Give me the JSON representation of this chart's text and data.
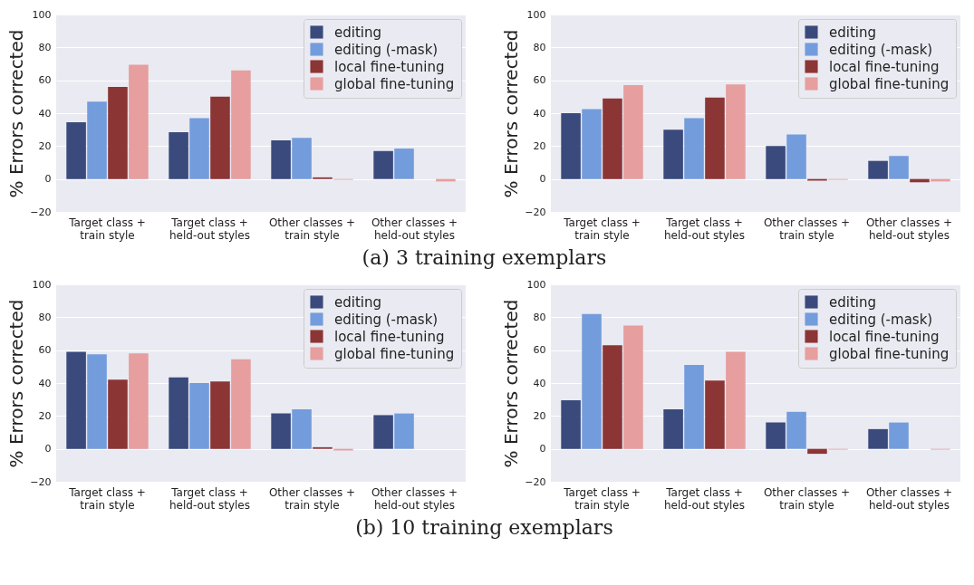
{
  "chart_data": [
    {
      "type": "bar",
      "ylabel": "% Errors corrected",
      "categories": [
        "Target class + train style",
        "Target class + held-out styles",
        "Other classes + train style",
        "Other classes + held-out styles"
      ],
      "ylim": [
        -20,
        100
      ],
      "yticks": [
        -20,
        0,
        20,
        40,
        60,
        80,
        100
      ],
      "grid": "y",
      "legend": "top right",
      "annotations": [
        "(a) 3 training exemplars"
      ],
      "series": [
        {
          "name": "editing",
          "color": "#3a4a7c",
          "values": [
            34.5,
            28.5,
            23.5,
            17
          ]
        },
        {
          "name": "editing (-mask)",
          "color": "#739cdc",
          "values": [
            47,
            37,
            25,
            18.5
          ]
        },
        {
          "name": "local fine-tuning",
          "color": "#8c3535",
          "values": [
            56,
            50,
            1,
            0
          ]
        },
        {
          "name": "global fine-tuning",
          "color": "#e69e9e",
          "values": [
            69.5,
            66,
            -0.5,
            -1.5
          ]
        }
      ]
    },
    {
      "type": "bar",
      "ylabel": "% Errors corrected",
      "categories": [
        "Target class + train style",
        "Target class + held-out styles",
        "Other classes + train style",
        "Other classes + held-out styles"
      ],
      "ylim": [
        -20,
        100
      ],
      "yticks": [
        -20,
        0,
        20,
        40,
        60,
        80,
        100
      ],
      "grid": "y",
      "legend": "top right",
      "series": [
        {
          "name": "editing",
          "color": "#3a4a7c",
          "values": [
            40,
            30,
            20,
            11
          ]
        },
        {
          "name": "editing (-mask)",
          "color": "#739cdc",
          "values": [
            42.5,
            37,
            27,
            14
          ]
        },
        {
          "name": "local fine-tuning",
          "color": "#8c3535",
          "values": [
            49,
            49.5,
            -1,
            -2
          ]
        },
        {
          "name": "global fine-tuning",
          "color": "#e69e9e",
          "values": [
            57,
            57.5,
            -0.5,
            -1.5
          ]
        }
      ]
    },
    {
      "type": "bar",
      "ylabel": "% Errors corrected",
      "categories": [
        "Target class + train style",
        "Target class + held-out styles",
        "Other classes + train style",
        "Other classes + held-out styles"
      ],
      "ylim": [
        -20,
        100
      ],
      "yticks": [
        -20,
        0,
        20,
        40,
        60,
        80,
        100
      ],
      "grid": "y",
      "legend": "top right",
      "annotations": [
        "(b) 10 training exemplars"
      ],
      "series": [
        {
          "name": "editing",
          "color": "#3a4a7c",
          "values": [
            59,
            43.5,
            21.5,
            20.5
          ]
        },
        {
          "name": "editing (-mask)",
          "color": "#739cdc",
          "values": [
            57.5,
            40,
            24,
            21.5
          ]
        },
        {
          "name": "local fine-tuning",
          "color": "#8c3535",
          "values": [
            42,
            41,
            1,
            null
          ]
        },
        {
          "name": "global fine-tuning",
          "color": "#e69e9e",
          "values": [
            58,
            54.5,
            -1,
            0
          ]
        }
      ]
    },
    {
      "type": "bar",
      "ylabel": "% Errors corrected",
      "categories": [
        "Target class + train style",
        "Target class + held-out styles",
        "Other classes + train style",
        "Other classes + held-out styles"
      ],
      "ylim": [
        -20,
        100
      ],
      "yticks": [
        -20,
        0,
        20,
        40,
        60,
        80,
        100
      ],
      "grid": "y",
      "legend": "top right",
      "series": [
        {
          "name": "editing",
          "color": "#3a4a7c",
          "values": [
            29.5,
            24,
            16,
            12
          ]
        },
        {
          "name": "editing (-mask)",
          "color": "#739cdc",
          "values": [
            82,
            51,
            22.5,
            16
          ]
        },
        {
          "name": "local fine-tuning",
          "color": "#8c3535",
          "values": [
            63,
            41.5,
            -3,
            0
          ]
        },
        {
          "name": "global fine-tuning",
          "color": "#e69e9e",
          "values": [
            75,
            59,
            -0.5,
            -0.5
          ]
        }
      ]
    }
  ]
}
